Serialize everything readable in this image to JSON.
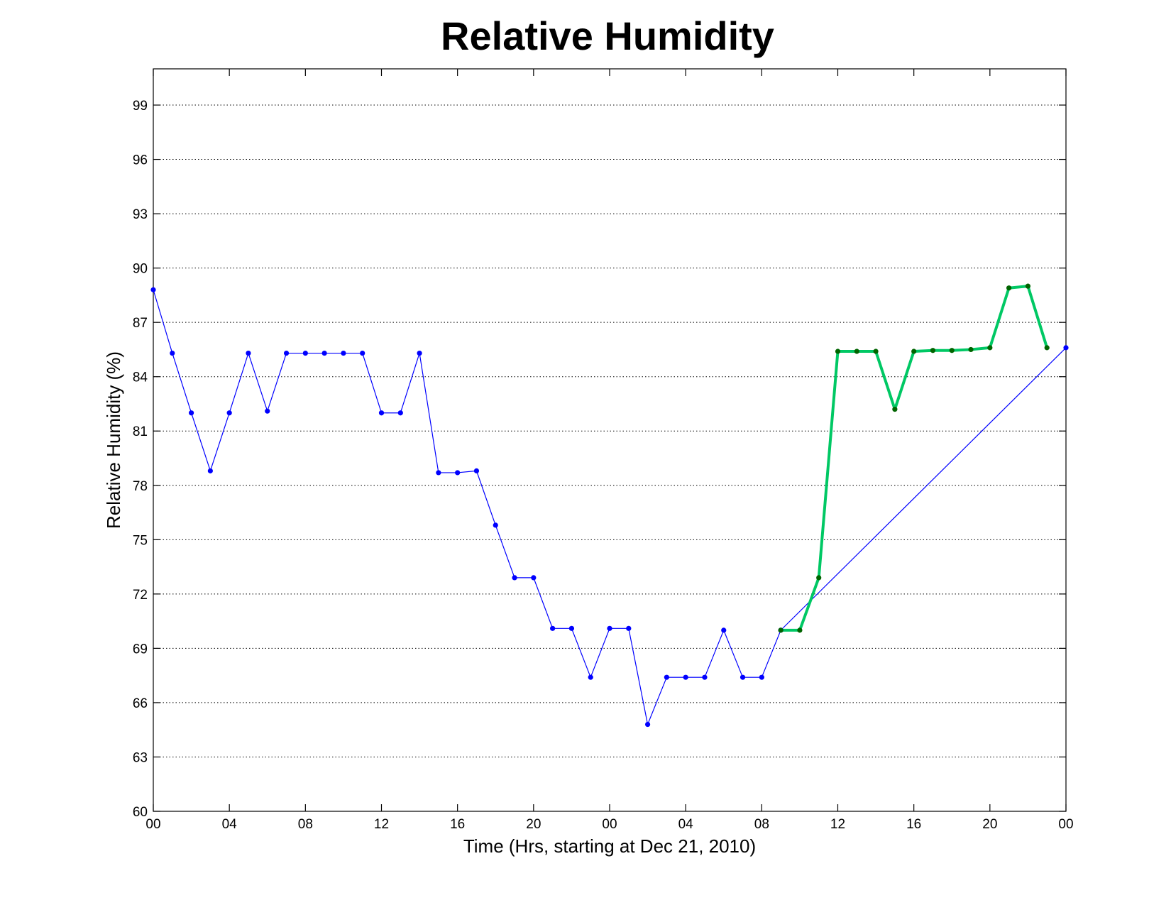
{
  "chart_data": {
    "type": "line",
    "title": "Relative Humidity",
    "xlabel": "Time (Hrs, starting at Dec 21, 2010)",
    "ylabel": "Relative Humidity (%)",
    "ylim": [
      60,
      101
    ],
    "xlim": [
      0,
      48
    ],
    "grid": "y-dotted",
    "x_ticks": [
      {
        "x": 0,
        "label": "00"
      },
      {
        "x": 4,
        "label": "04"
      },
      {
        "x": 8,
        "label": "08"
      },
      {
        "x": 12,
        "label": "12"
      },
      {
        "x": 16,
        "label": "16"
      },
      {
        "x": 20,
        "label": "20"
      },
      {
        "x": 24,
        "label": "00"
      },
      {
        "x": 28,
        "label": "04"
      },
      {
        "x": 32,
        "label": "08"
      },
      {
        "x": 36,
        "label": "12"
      },
      {
        "x": 40,
        "label": "16"
      },
      {
        "x": 44,
        "label": "20"
      },
      {
        "x": 48,
        "label": "00"
      }
    ],
    "y_ticks": [
      60,
      63,
      66,
      69,
      72,
      75,
      78,
      81,
      84,
      87,
      90,
      93,
      96,
      99
    ],
    "series": [
      {
        "color": "#0000ff",
        "line_width": 1.2,
        "marker_color": "#0000ff",
        "x": [
          0,
          1,
          2,
          3,
          4,
          5,
          6,
          7,
          8,
          9,
          10,
          11,
          12,
          13,
          14,
          15,
          16,
          17,
          18,
          19,
          20,
          21,
          22,
          23,
          24,
          25,
          26,
          27,
          28,
          29,
          30,
          31,
          32,
          33,
          48
        ],
        "y": [
          88.8,
          85.3,
          82.0,
          78.8,
          82.0,
          85.3,
          82.1,
          85.3,
          85.3,
          85.3,
          85.3,
          85.3,
          82.0,
          82.0,
          85.3,
          78.7,
          78.7,
          78.8,
          75.8,
          72.9,
          72.9,
          70.1,
          70.1,
          67.4,
          70.1,
          70.1,
          64.8,
          67.4,
          67.4,
          67.4,
          70.0,
          67.4,
          67.4,
          70.0,
          85.6
        ]
      },
      {
        "color": "#00c864",
        "line_width": 4,
        "marker_color": "#006400",
        "x": [
          33,
          34,
          35,
          36,
          37,
          38,
          39,
          40,
          41,
          42,
          43,
          44,
          45,
          46,
          47
        ],
        "y": [
          70.0,
          70.0,
          72.9,
          85.4,
          85.4,
          85.4,
          82.2,
          85.4,
          85.45,
          85.45,
          85.5,
          85.6,
          88.9,
          89.0,
          85.6
        ]
      }
    ]
  }
}
